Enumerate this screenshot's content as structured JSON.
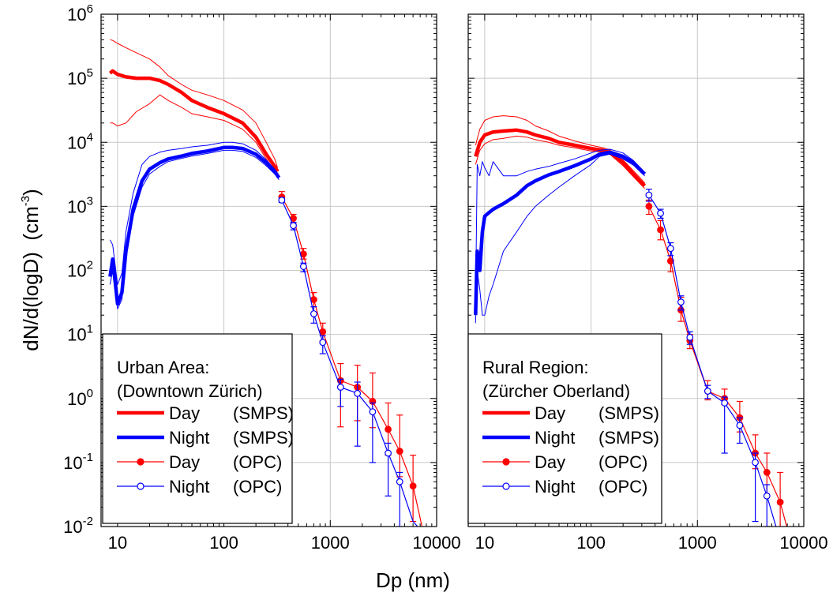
{
  "chart_data": [
    {
      "type": "line",
      "panel": "left",
      "xscale": "log",
      "yscale": "log",
      "xlim": [
        7,
        10000
      ],
      "ylim": [
        0.01,
        1000000
      ],
      "grid": true,
      "legend_position": "bottom-left",
      "xticks": [
        "10",
        "100",
        "1000",
        "10000"
      ],
      "yticks": [
        {
          "base": "10",
          "exp": "-2"
        },
        {
          "base": "10",
          "exp": "-1"
        },
        {
          "base": "10",
          "exp": "0"
        },
        {
          "base": "10",
          "exp": "1"
        },
        {
          "base": "10",
          "exp": "2"
        },
        {
          "base": "10",
          "exp": "3"
        },
        {
          "base": "10",
          "exp": "4"
        },
        {
          "base": "10",
          "exp": "5"
        },
        {
          "base": "10",
          "exp": "6"
        }
      ],
      "legend_title": [
        "Urban Area:",
        "(Downtown Zürich)"
      ],
      "series": [
        {
          "name": "Day",
          "instrument": "(SMPS)",
          "color": "#ff0000",
          "kind": "smps",
          "x": [
            8.5,
            9,
            10,
            12,
            15,
            20,
            25,
            30,
            40,
            50,
            70,
            100,
            150,
            200,
            250,
            300,
            320
          ],
          "y": [
            120000,
            130000,
            115000,
            105000,
            100000,
            100000,
            92000,
            80000,
            60000,
            45000,
            35000,
            28000,
            20000,
            12000,
            6500,
            4200,
            3500
          ],
          "band_upper": [
            400000,
            390000,
            350000,
            300000,
            250000,
            200000,
            150000,
            110000,
            80000,
            65000,
            55000,
            45000,
            32000,
            20000,
            10000,
            5500,
            4000
          ],
          "band_lower": [
            20000,
            20000,
            18000,
            20000,
            30000,
            40000,
            55000,
            45000,
            35000,
            28000,
            25000,
            22000,
            16000,
            10000,
            5500,
            3600,
            3000
          ]
        },
        {
          "name": "Night",
          "instrument": "(SMPS)",
          "color": "#0000ff",
          "kind": "smps",
          "x": [
            8.5,
            9,
            10,
            11,
            12,
            14,
            17,
            20,
            25,
            30,
            40,
            50,
            70,
            100,
            120,
            150,
            200,
            250,
            300,
            330
          ],
          "y": [
            80,
            150,
            30,
            45,
            200,
            900,
            2500,
            3800,
            4800,
            5500,
            6100,
            6700,
            7300,
            8300,
            8300,
            8000,
            6500,
            4800,
            3500,
            2800
          ],
          "band_upper": [
            300,
            250,
            60,
            90,
            400,
            1600,
            4500,
            6000,
            7000,
            7500,
            8000,
            8500,
            9000,
            10000,
            10000,
            9500,
            7500,
            5300,
            3800,
            3000
          ],
          "band_lower": [
            60,
            100,
            25,
            35,
            150,
            700,
            2000,
            3200,
            4200,
            5000,
            5600,
            6100,
            6700,
            7500,
            7500,
            7200,
            5800,
            4300,
            3200,
            2600
          ]
        },
        {
          "name": "Day",
          "instrument": "(OPC)",
          "color": "#ff0000",
          "kind": "opc",
          "marker": "filled-circle",
          "x": [
            350,
            450,
            560,
            700,
            850,
            1250,
            1800,
            2500,
            3500,
            4500,
            6000,
            7500
          ],
          "y": [
            1400,
            650,
            180,
            35,
            11,
            1.9,
            1.5,
            0.9,
            0.33,
            0.15,
            0.043,
            0.008
          ],
          "err_upper": [
            1700,
            750,
            220,
            45,
            15,
            3.5,
            3.3,
            2.5,
            0.85,
            0.55,
            0.13,
            null
          ],
          "err_lower": [
            1150,
            550,
            150,
            27,
            8,
            0.36,
            0.45,
            0.35,
            0.13,
            0.06,
            0.012,
            null
          ]
        },
        {
          "name": "Night",
          "instrument": "(OPC)",
          "color": "#0000ff",
          "kind": "opc",
          "marker": "open-circle",
          "x": [
            350,
            450,
            560,
            700,
            850,
            1250,
            1800,
            2500,
            3500,
            4500,
            6000,
            7000
          ],
          "y": [
            1250,
            500,
            115,
            21,
            7.5,
            1.5,
            1.2,
            0.62,
            0.14,
            0.05,
            0.012,
            0.009
          ],
          "err_upper": [
            1350,
            560,
            130,
            27,
            9.5,
            2.0,
            1.8,
            0.85,
            0.2,
            0.07,
            null,
            null
          ],
          "err_lower": [
            1150,
            430,
            95,
            15,
            5.0,
            0.75,
            0.18,
            0.1,
            0.03,
            0.01,
            null,
            null
          ]
        }
      ]
    },
    {
      "type": "line",
      "panel": "right",
      "xscale": "log",
      "yscale": "log",
      "xlim": [
        7,
        10000
      ],
      "ylim": [
        0.01,
        1000000
      ],
      "grid": true,
      "legend_position": "bottom-left",
      "xticks": [
        "10",
        "100",
        "1000",
        "10000"
      ],
      "legend_title": [
        "Rural Region:",
        "(Zürcher Oberland)"
      ],
      "series": [
        {
          "name": "Day",
          "instrument": "(SMPS)",
          "color": "#ff0000",
          "kind": "smps",
          "x": [
            8.2,
            9,
            10,
            12,
            15,
            20,
            25,
            30,
            40,
            50,
            70,
            100,
            130,
            150,
            200,
            250,
            300,
            320
          ],
          "y": [
            6000,
            10000,
            13000,
            14500,
            15000,
            15500,
            14500,
            13000,
            11500,
            10000,
            9000,
            8000,
            7500,
            7000,
            4800,
            3200,
            2300,
            2100
          ],
          "band_upper": [
            9000,
            16000,
            22000,
            25000,
            26000,
            25000,
            22000,
            18000,
            15000,
            12500,
            10500,
            9000,
            8200,
            7600,
            5300,
            3600,
            2600,
            2300
          ],
          "band_lower": [
            4500,
            7500,
            9500,
            11000,
            11500,
            12500,
            12000,
            11000,
            10000,
            9000,
            8200,
            7300,
            7000,
            6500,
            4300,
            2900,
            2100,
            1900
          ]
        },
        {
          "name": "Night",
          "instrument": "(SMPS)",
          "color": "#0000ff",
          "kind": "smps",
          "x": [
            8.2,
            8.5,
            9,
            9.5,
            10,
            11,
            12,
            15,
            20,
            25,
            30,
            40,
            50,
            70,
            100,
            120,
            150,
            200,
            250,
            300,
            320
          ],
          "y": [
            20,
            200,
            100,
            400,
            700,
            800,
            900,
            1100,
            1500,
            2100,
            2500,
            3100,
            3500,
            4300,
            5500,
            6500,
            7000,
            6000,
            4800,
            3500,
            3200
          ],
          "band_upper": [
            30,
            4500,
            3000,
            5000,
            4000,
            3000,
            5000,
            3000,
            3000,
            3500,
            3800,
            4200,
            4700,
            5500,
            6800,
            7500,
            7800,
            6800,
            5200,
            3800,
            3400
          ],
          "band_lower": [
            15,
            100,
            50,
            20,
            20,
            40,
            60,
            200,
            400,
            700,
            1000,
            1500,
            2000,
            3000,
            4500,
            6000,
            6500,
            5500,
            4400,
            3300,
            3000
          ]
        },
        {
          "name": "Day",
          "instrument": "(OPC)",
          "color": "#ff0000",
          "kind": "opc",
          "marker": "filled-circle",
          "x": [
            350,
            450,
            560,
            700,
            850,
            1250,
            1800,
            2500,
            3500,
            4500,
            6000,
            7500
          ],
          "y": [
            1000,
            430,
            140,
            24,
            8,
            1.3,
            1.0,
            0.5,
            0.14,
            0.07,
            0.024,
            0.006
          ],
          "err_upper": [
            1250,
            600,
            210,
            38,
            10,
            1.9,
            1.4,
            0.9,
            0.27,
            0.14,
            0.07,
            null
          ],
          "err_lower": [
            750,
            300,
            95,
            16,
            6,
            0.95,
            0.8,
            0.3,
            0.08,
            0.03,
            0.009,
            null
          ]
        },
        {
          "name": "Night",
          "instrument": "(OPC)",
          "color": "#0000ff",
          "kind": "opc",
          "marker": "open-circle",
          "x": [
            350,
            450,
            560,
            700,
            850,
            1250,
            1800,
            2500,
            3500,
            4500,
            6000,
            6500
          ],
          "y": [
            1500,
            780,
            220,
            32,
            9,
            1.3,
            0.85,
            0.38,
            0.1,
            0.03,
            0.006,
            0.006
          ],
          "err_upper": [
            1850,
            900,
            270,
            40,
            11,
            1.6,
            1.05,
            0.5,
            0.14,
            0.045,
            null,
            null
          ],
          "err_lower": [
            1200,
            650,
            170,
            24,
            7,
            1.0,
            0.14,
            0.2,
            0.012,
            0.01,
            null,
            null
          ]
        }
      ]
    }
  ],
  "x_axis_title": "Dp (nm)",
  "y_axis_title": {
    "main": "dN/d(logD)",
    "unit_open": "(cm",
    "unit_exp": "-3",
    "unit_close": ")"
  },
  "legend_rows": [
    {
      "label": "Day",
      "instrument": "(SMPS)",
      "color": "#ff0000",
      "style": "thick"
    },
    {
      "label": "Night",
      "instrument": "(SMPS)",
      "color": "#0000ff",
      "style": "thick"
    },
    {
      "label": "Day",
      "instrument": "(OPC)",
      "color": "#ff0000",
      "style": "filled-marker"
    },
    {
      "label": "Night",
      "instrument": "(OPC)",
      "color": "#0000ff",
      "style": "open-marker"
    }
  ]
}
